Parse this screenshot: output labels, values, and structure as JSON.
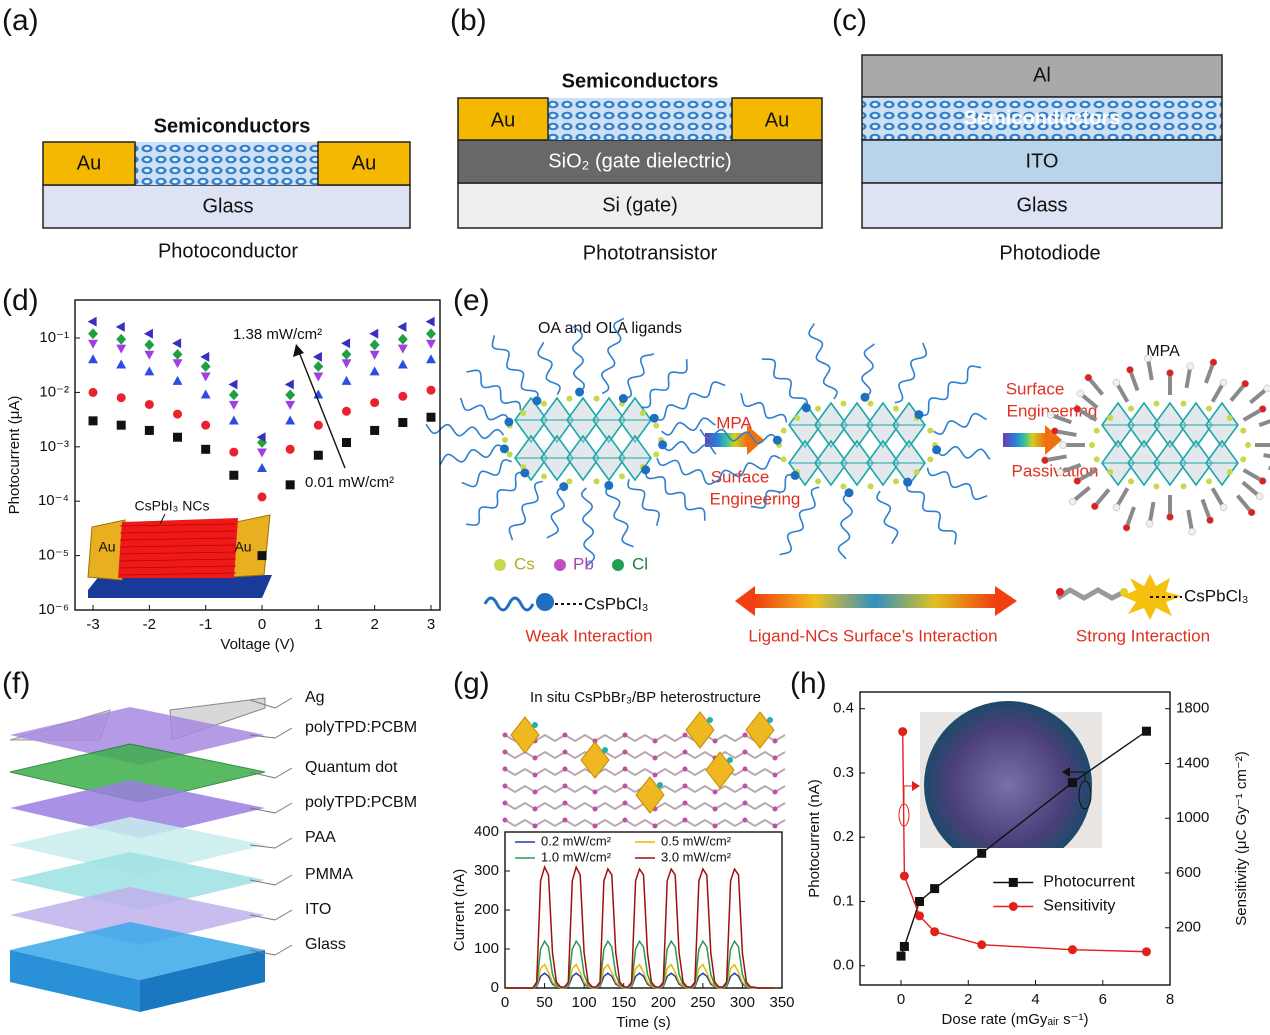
{
  "panel_labels": [
    "(a)",
    "(b)",
    "(c)",
    "(d)",
    "(e)",
    "(f)",
    "(g)",
    "(h)"
  ],
  "panel_a": {
    "title": "Semiconductors",
    "left": "Au",
    "right": "Au",
    "substrate": "Glass",
    "caption": "Photoconductor"
  },
  "panel_b": {
    "title": "Semiconductors",
    "left": "Au",
    "right": "Au",
    "dielectric": "SiO₂ (gate dielectric)",
    "gate": "Si (gate)",
    "caption": "Phototransistor"
  },
  "panel_c": {
    "top": "Al",
    "active": "Semiconductors",
    "electrode": "ITO",
    "substrate": "Glass",
    "caption": "Photodiode"
  },
  "panel_e": {
    "ligands": "OA and OLA ligands",
    "arrow_1": "MPA",
    "step_1": [
      "Surface",
      "Engineering"
    ],
    "step_2_top": [
      "Surface",
      "Engineering"
    ],
    "step_2_bottom": "Passivation",
    "product": "MPA",
    "elements": [
      "Cs",
      "Pb",
      "Cl"
    ],
    "left_core": "CsPbCl₃",
    "right_core": "CsPbCl₃",
    "weak": "Weak Interaction",
    "middle": "Ligand-NCs Surface’s Interaction",
    "strong": "Strong Interaction"
  },
  "panel_f": {
    "layers": [
      "Ag",
      "polyTPD:PCBM",
      "Quantum dot",
      "polyTPD:PCBM",
      "PAA",
      "PMMA",
      "ITO",
      "Glass"
    ]
  },
  "chart_data": [
    {
      "type": "scatter",
      "xlabel": "Voltage (V)",
      "ylabel": "Photocurrent (μA)",
      "log_y": true,
      "xlim": [
        -3.32,
        3.16
      ],
      "ylim": [
        1e-06,
        0.5
      ],
      "xticks": [
        -3,
        -2,
        -1,
        0,
        1,
        2,
        3
      ],
      "yticks": [
        {
          "value": 1e-06,
          "label": "10⁻⁶"
        },
        {
          "value": 1e-05,
          "label": "10⁻⁵"
        },
        {
          "value": 0.0001,
          "label": "10⁻⁴"
        },
        {
          "value": 0.001,
          "label": "10⁻³"
        },
        {
          "value": 0.01,
          "label": "10⁻²"
        },
        {
          "value": 0.1,
          "label": "10⁻¹"
        }
      ],
      "x": [
        -3,
        -2.5,
        -2,
        -1.5,
        -1,
        -0.5,
        0,
        0.5,
        1,
        1.5,
        2,
        2.5,
        3
      ],
      "series": [
        {
          "color": "#111111",
          "marker": "square",
          "values": [
            0.003,
            0.0025,
            0.002,
            0.0015,
            0.0009,
            0.0003,
            1e-05,
            0.0002,
            0.0007,
            0.0012,
            0.002,
            0.0028,
            0.0035
          ]
        },
        {
          "color": "#e8222e",
          "marker": "circle",
          "values": [
            0.01,
            0.008,
            0.006,
            0.004,
            0.0025,
            0.0008,
            0.00012,
            0.0009,
            0.0025,
            0.0045,
            0.0065,
            0.0085,
            0.011
          ]
        },
        {
          "color": "#2a4fe0",
          "marker": "triangle-up",
          "values": [
            0.04,
            0.032,
            0.024,
            0.016,
            0.009,
            0.003,
            0.0004,
            0.003,
            0.009,
            0.016,
            0.024,
            0.032,
            0.04
          ]
        },
        {
          "color": "#a040e0",
          "marker": "triangle-down",
          "values": [
            0.08,
            0.065,
            0.05,
            0.035,
            0.02,
            0.006,
            0.0008,
            0.006,
            0.02,
            0.035,
            0.05,
            0.065,
            0.08
          ]
        },
        {
          "color": "#20a040",
          "marker": "diamond",
          "values": [
            0.12,
            0.095,
            0.075,
            0.05,
            0.03,
            0.009,
            0.0012,
            0.009,
            0.03,
            0.05,
            0.075,
            0.095,
            0.12
          ]
        },
        {
          "color": "#3a30c0",
          "marker": "triangle-left",
          "values": [
            0.2,
            0.16,
            0.12,
            0.08,
            0.045,
            0.014,
            0.0015,
            0.014,
            0.045,
            0.08,
            0.12,
            0.16,
            0.2
          ]
        }
      ],
      "annotations": [
        "1.38 mW/cm²",
        "0.01 mW/cm²"
      ],
      "inset": {
        "label": "CsPbI₃ NCs",
        "electrodes": [
          "Au",
          "Au"
        ]
      }
    },
    {
      "type": "line",
      "title": "In situ CsPbBr₃/BP heterostructure",
      "xlabel": "Time (s)",
      "ylabel": "Current (nA)",
      "xlim": [
        0,
        350
      ],
      "ylim": [
        0,
        400
      ],
      "xticks": [
        0,
        50,
        100,
        150,
        200,
        250,
        300,
        350
      ],
      "yticks": [
        0,
        100,
        200,
        300,
        400
      ],
      "legend": "upper center",
      "legend_columns": 2,
      "x": [
        0,
        5,
        10,
        15,
        20,
        25,
        30,
        35,
        40,
        45,
        50,
        55,
        60,
        65,
        70,
        75,
        80,
        85,
        90,
        95,
        100,
        105,
        110,
        115,
        120,
        125,
        130,
        135,
        140,
        145,
        150,
        155,
        160,
        165,
        170,
        175,
        180,
        185,
        190,
        195,
        200,
        205,
        210,
        215,
        220,
        225,
        230,
        235,
        240,
        245,
        250,
        255,
        260,
        265,
        270,
        275,
        280,
        285,
        290,
        295,
        300,
        305,
        310,
        315,
        320,
        325,
        330,
        335,
        340
      ],
      "series": [
        {
          "name": "0.2 mW/cm²",
          "color": "#1f3fa8",
          "values": [
            0,
            0,
            0,
            0,
            0,
            0,
            0,
            0,
            3,
            30,
            38,
            30,
            10,
            3,
            1,
            1,
            3,
            30,
            38,
            30,
            10,
            3,
            1,
            1,
            3,
            30,
            38,
            30,
            10,
            3,
            1,
            1,
            3,
            30,
            38,
            30,
            10,
            3,
            1,
            1,
            3,
            30,
            38,
            30,
            10,
            3,
            1,
            1,
            3,
            30,
            38,
            30,
            10,
            3,
            1,
            1,
            3,
            30,
            38,
            30,
            10,
            3,
            1,
            1,
            0,
            0,
            0,
            0,
            0
          ]
        },
        {
          "name": "0.5 mW/cm²",
          "color": "#e8b800",
          "values": [
            0,
            0,
            0,
            0,
            0,
            0,
            0,
            0,
            5,
            50,
            60,
            40,
            15,
            4,
            1,
            1,
            5,
            50,
            60,
            40,
            15,
            4,
            1,
            1,
            5,
            50,
            60,
            40,
            15,
            4,
            1,
            1,
            5,
            50,
            60,
            40,
            15,
            4,
            1,
            1,
            5,
            50,
            60,
            40,
            15,
            4,
            1,
            1,
            5,
            50,
            60,
            40,
            15,
            4,
            1,
            1,
            5,
            50,
            60,
            40,
            15,
            4,
            1,
            1,
            0,
            0,
            0,
            0,
            0
          ]
        },
        {
          "name": "1.0 mW/cm²",
          "color": "#2a9a4a",
          "values": [
            0,
            0,
            0,
            0,
            0,
            0,
            0,
            0,
            8,
            100,
            120,
            105,
            35,
            8,
            2,
            2,
            8,
            100,
            120,
            105,
            35,
            8,
            2,
            2,
            8,
            100,
            120,
            105,
            35,
            8,
            2,
            2,
            8,
            100,
            120,
            105,
            35,
            8,
            2,
            2,
            8,
            100,
            120,
            105,
            35,
            8,
            2,
            2,
            8,
            100,
            120,
            105,
            35,
            8,
            2,
            2,
            8,
            100,
            120,
            105,
            35,
            8,
            2,
            2,
            0,
            0,
            0,
            0,
            0
          ]
        },
        {
          "name": "3.0 mW/cm²",
          "color": "#a01010",
          "values": [
            0,
            0,
            0,
            0,
            0,
            0,
            0,
            0,
            15,
            275,
            310,
            290,
            90,
            15,
            3,
            2,
            15,
            275,
            310,
            290,
            90,
            15,
            3,
            2,
            15,
            275,
            305,
            290,
            90,
            15,
            3,
            2,
            15,
            275,
            305,
            290,
            90,
            15,
            3,
            2,
            15,
            275,
            305,
            290,
            90,
            15,
            3,
            2,
            15,
            275,
            305,
            290,
            90,
            15,
            3,
            2,
            15,
            275,
            305,
            290,
            90,
            15,
            3,
            2,
            0,
            0,
            0,
            0,
            0
          ]
        }
      ]
    },
    {
      "type": "line",
      "xlabel": "Dose rate (mGyₐᵢᵣ s⁻¹)",
      "ylabel": "Photocurrent (nA)",
      "y2label": "Sensitivity (μC Gy⁻¹ cm⁻²)",
      "xlim": [
        -1.22,
        8
      ],
      "ylim": [
        -0.03,
        0.426
      ],
      "y2lim": [
        -218,
        1922
      ],
      "xticks": [
        0,
        2,
        4,
        6,
        8
      ],
      "yticks": [
        {
          "value": 0,
          "label": "0.0"
        },
        0.1,
        0.2,
        0.3,
        0.4
      ],
      "y2ticks": [
        200,
        600,
        1000,
        1400,
        1800
      ],
      "legend": "center right",
      "series": [
        {
          "name": "Photocurrent",
          "color": "#111111",
          "marker": "square",
          "x": [
            0,
            0.1,
            0.55,
            1.0,
            2.4,
            5.1,
            7.3
          ],
          "values": [
            0.015,
            0.03,
            0.1,
            0.12,
            0.175,
            0.285,
            0.365
          ]
        },
        {
          "name": "Sensitivity",
          "color": "#e0201a",
          "marker": "circle",
          "axis": "y2",
          "x": [
            0.05,
            0.1,
            0.55,
            1.0,
            2.4,
            5.1,
            7.3
          ],
          "values": [
            1633,
            578,
            287,
            171,
            76,
            40,
            25
          ]
        }
      ]
    }
  ]
}
